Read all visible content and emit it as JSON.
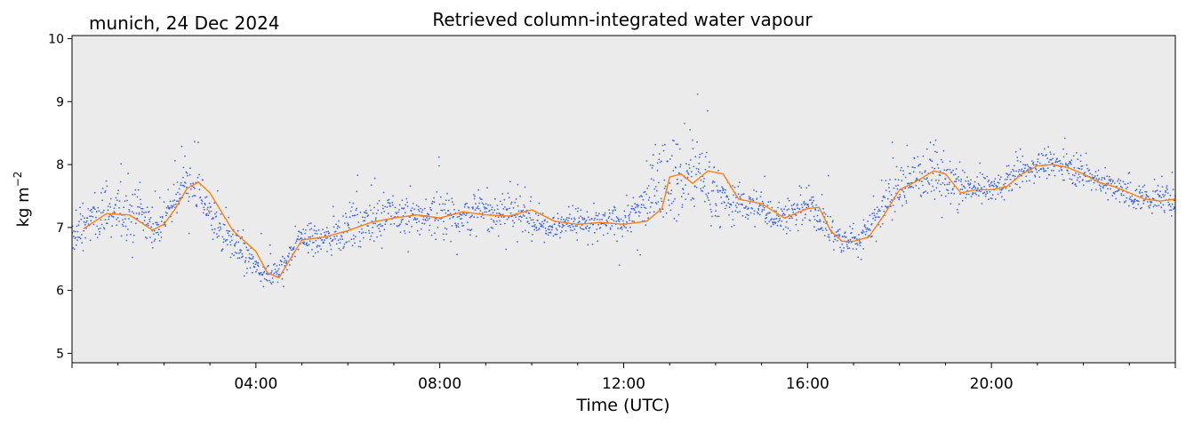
{
  "header": {
    "location_date": "munich, 24 Dec 2024"
  },
  "colors": {
    "plot_background": "#EBEBEB",
    "raw_series": "#4169E1",
    "smoothed_series": "#FF7F0E"
  },
  "chart_data": {
    "type": "scatter",
    "title": "Retrieved column-integrated water vapour",
    "xlabel": "Time (UTC)",
    "ylabel": "kg m",
    "ylabel_superscript": "−2",
    "xlim": [
      "00:00",
      "24:00"
    ],
    "ylim": [
      4.85,
      10.05
    ],
    "x_ticks": [
      "04:00",
      "08:00",
      "12:00",
      "16:00",
      "20:00"
    ],
    "y_ticks": [
      "5",
      "6",
      "7",
      "8",
      "9",
      "10"
    ],
    "grid": false,
    "series": [
      {
        "style": "scatter",
        "description_points": "raw retrievals, dense scatter",
        "x": [
          "00:00",
          "00:30",
          "01:00",
          "01:30",
          "01:50",
          "02:10",
          "02:25",
          "02:45",
          "03:15",
          "03:45",
          "04:10",
          "04:30",
          "05:00",
          "05:30",
          "06:00",
          "06:30",
          "07:00",
          "07:30",
          "08:00",
          "08:30",
          "09:00",
          "09:30",
          "10:00",
          "10:30",
          "11:00",
          "11:30",
          "12:00",
          "12:30",
          "12:50",
          "13:05",
          "13:20",
          "13:40",
          "14:00",
          "14:30",
          "15:00",
          "15:30",
          "16:00",
          "16:30",
          "16:50",
          "17:10",
          "17:40",
          "18:10",
          "18:40",
          "19:00",
          "19:30",
          "20:00",
          "20:30",
          "21:00",
          "21:30",
          "22:00",
          "22:30",
          "23:00",
          "23:30",
          "24:00"
        ],
        "y": [
          6.8,
          7.2,
          7.25,
          7.2,
          6.95,
          7.3,
          7.7,
          7.6,
          6.9,
          6.6,
          6.2,
          6.3,
          6.85,
          6.8,
          7.0,
          7.1,
          7.2,
          7.15,
          7.25,
          7.2,
          7.25,
          7.3,
          7.1,
          7.05,
          7.1,
          7.05,
          7.1,
          7.4,
          7.8,
          7.85,
          7.7,
          7.9,
          7.5,
          7.4,
          7.3,
          7.15,
          7.35,
          6.95,
          6.75,
          6.85,
          7.35,
          7.75,
          7.9,
          7.75,
          7.6,
          7.6,
          7.8,
          8.0,
          8.0,
          7.85,
          7.7,
          7.5,
          7.45,
          7.45
        ],
        "spread": [
          0.15,
          0.25,
          0.3,
          0.25,
          0.2,
          0.2,
          0.25,
          0.25,
          0.2,
          0.2,
          0.15,
          0.15,
          0.15,
          0.2,
          0.25,
          0.25,
          0.25,
          0.2,
          0.25,
          0.25,
          0.2,
          0.25,
          0.15,
          0.15,
          0.15,
          0.15,
          0.2,
          0.3,
          0.4,
          0.5,
          0.4,
          0.5,
          0.25,
          0.2,
          0.2,
          0.2,
          0.2,
          0.2,
          0.15,
          0.2,
          0.25,
          0.3,
          0.3,
          0.25,
          0.15,
          0.15,
          0.15,
          0.15,
          0.15,
          0.15,
          0.15,
          0.15,
          0.15,
          0.15
        ]
      },
      {
        "style": "line",
        "x": [
          "00:15",
          "00:45",
          "01:15",
          "01:45",
          "02:00",
          "02:15",
          "02:30",
          "02:45",
          "03:00",
          "03:30",
          "04:00",
          "04:15",
          "04:30",
          "05:00",
          "05:30",
          "06:00",
          "06:30",
          "07:00",
          "07:30",
          "08:00",
          "08:30",
          "09:00",
          "09:30",
          "10:00",
          "10:30",
          "11:00",
          "11:30",
          "12:00",
          "12:30",
          "12:50",
          "13:00",
          "13:15",
          "13:30",
          "13:50",
          "14:10",
          "14:30",
          "15:00",
          "15:30",
          "16:00",
          "16:15",
          "16:30",
          "16:45",
          "17:00",
          "17:20",
          "17:40",
          "18:00",
          "18:20",
          "18:45",
          "19:00",
          "19:20",
          "19:40",
          "20:00",
          "20:20",
          "20:40",
          "21:00",
          "21:20",
          "21:40",
          "22:00",
          "22:20",
          "22:40",
          "23:00",
          "23:20",
          "23:40",
          "24:00"
        ],
        "y": [
          6.98,
          7.22,
          7.2,
          6.96,
          7.05,
          7.3,
          7.62,
          7.72,
          7.55,
          6.95,
          6.62,
          6.28,
          6.2,
          6.8,
          6.85,
          6.95,
          7.08,
          7.15,
          7.2,
          7.15,
          7.25,
          7.2,
          7.18,
          7.28,
          7.1,
          7.05,
          7.08,
          7.05,
          7.1,
          7.3,
          7.8,
          7.85,
          7.7,
          7.9,
          7.85,
          7.45,
          7.38,
          7.15,
          7.3,
          7.32,
          6.95,
          6.78,
          6.78,
          6.85,
          7.2,
          7.6,
          7.72,
          7.9,
          7.85,
          7.55,
          7.6,
          7.6,
          7.65,
          7.85,
          7.98,
          8.0,
          7.95,
          7.85,
          7.72,
          7.65,
          7.55,
          7.45,
          7.42,
          7.45
        ]
      }
    ]
  }
}
